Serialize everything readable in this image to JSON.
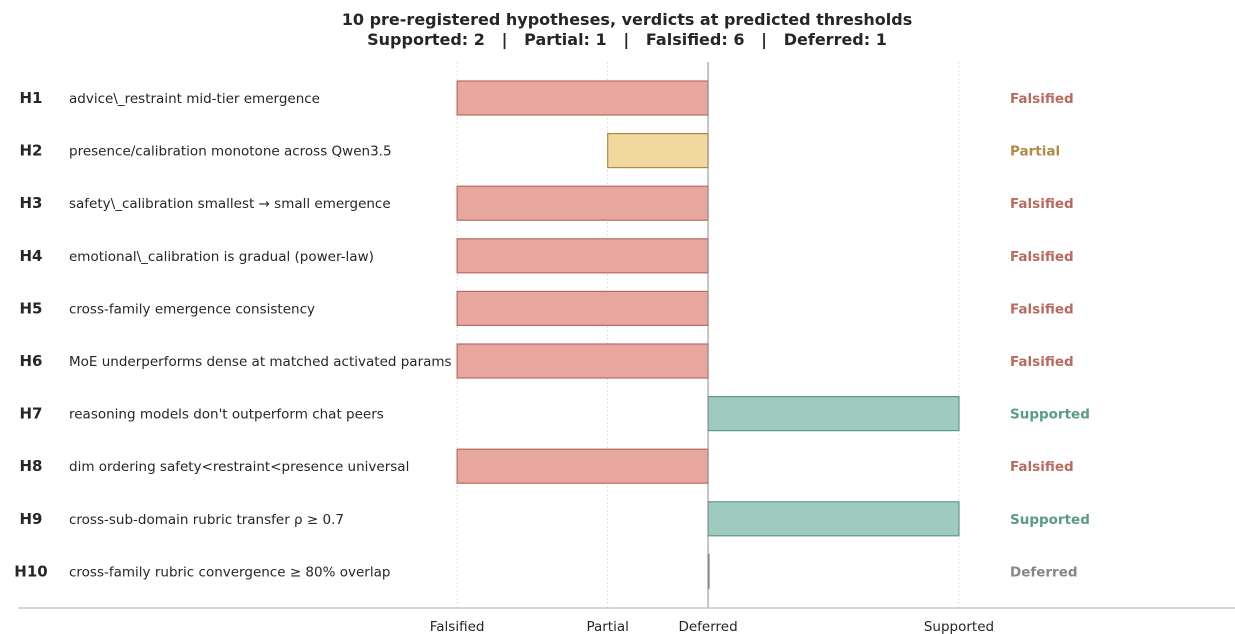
{
  "colors": {
    "Falsified": {
      "fill": "#e8a79e",
      "stroke": "#b96a5e",
      "text": "#b96a5e"
    },
    "Partial": {
      "fill": "#f0d89e",
      "stroke": "#b08a45",
      "text": "#b08a45"
    },
    "Supported": {
      "fill": "#9fcac0",
      "stroke": "#5a9a8a",
      "text": "#5a9a8a"
    },
    "Deferred": {
      "fill": "#9a9a9a",
      "stroke": "#8a8a8a",
      "text": "#8a8580"
    }
  },
  "chart_data": {
    "type": "bar",
    "orientation": "horizontal",
    "title": "10 pre-registered hypotheses, verdicts at predicted thresholds",
    "subtitle": "Supported: 2   |   Partial: 1   |   Falsified: 6   |   Deferred: 1",
    "x_ticks": [
      {
        "label": "Falsified",
        "value": -1.0
      },
      {
        "label": "Partial",
        "value": -0.4
      },
      {
        "label": "Deferred",
        "value": 0.0
      },
      {
        "label": "Supported",
        "value": 1.0
      }
    ],
    "xlim": [
      -2.75,
      2.1
    ],
    "baseline": 0.0,
    "grid": "vertical dotted at ticks",
    "hypotheses": [
      {
        "id": "H1",
        "description": "advice\\_restraint mid-tier emergence",
        "verdict": "Falsified",
        "value": -1.0
      },
      {
        "id": "H2",
        "description": "presence/calibration monotone across Qwen3.5",
        "verdict": "Partial",
        "value": -0.4
      },
      {
        "id": "H3",
        "description": "safety\\_calibration smallest → small emergence",
        "verdict": "Falsified",
        "value": -1.0
      },
      {
        "id": "H4",
        "description": "emotional\\_calibration is gradual (power-law)",
        "verdict": "Falsified",
        "value": -1.0
      },
      {
        "id": "H5",
        "description": "cross-family emergence consistency",
        "verdict": "Falsified",
        "value": -1.0
      },
      {
        "id": "H6",
        "description": "MoE underperforms dense at matched activated params",
        "verdict": "Falsified",
        "value": -1.0
      },
      {
        "id": "H7",
        "description": "reasoning models don't outperform chat peers",
        "verdict": "Supported",
        "value": 1.0
      },
      {
        "id": "H8",
        "description": "dim ordering safety<restraint<presence universal",
        "verdict": "Falsified",
        "value": -1.0
      },
      {
        "id": "H9",
        "description": "cross-sub-domain rubric transfer ρ ≥ 0.7",
        "verdict": "Supported",
        "value": 1.0
      },
      {
        "id": "H10",
        "description": "cross-family rubric convergence  ≥ 80% overlap",
        "verdict": "Deferred",
        "value": 0.0
      }
    ]
  }
}
